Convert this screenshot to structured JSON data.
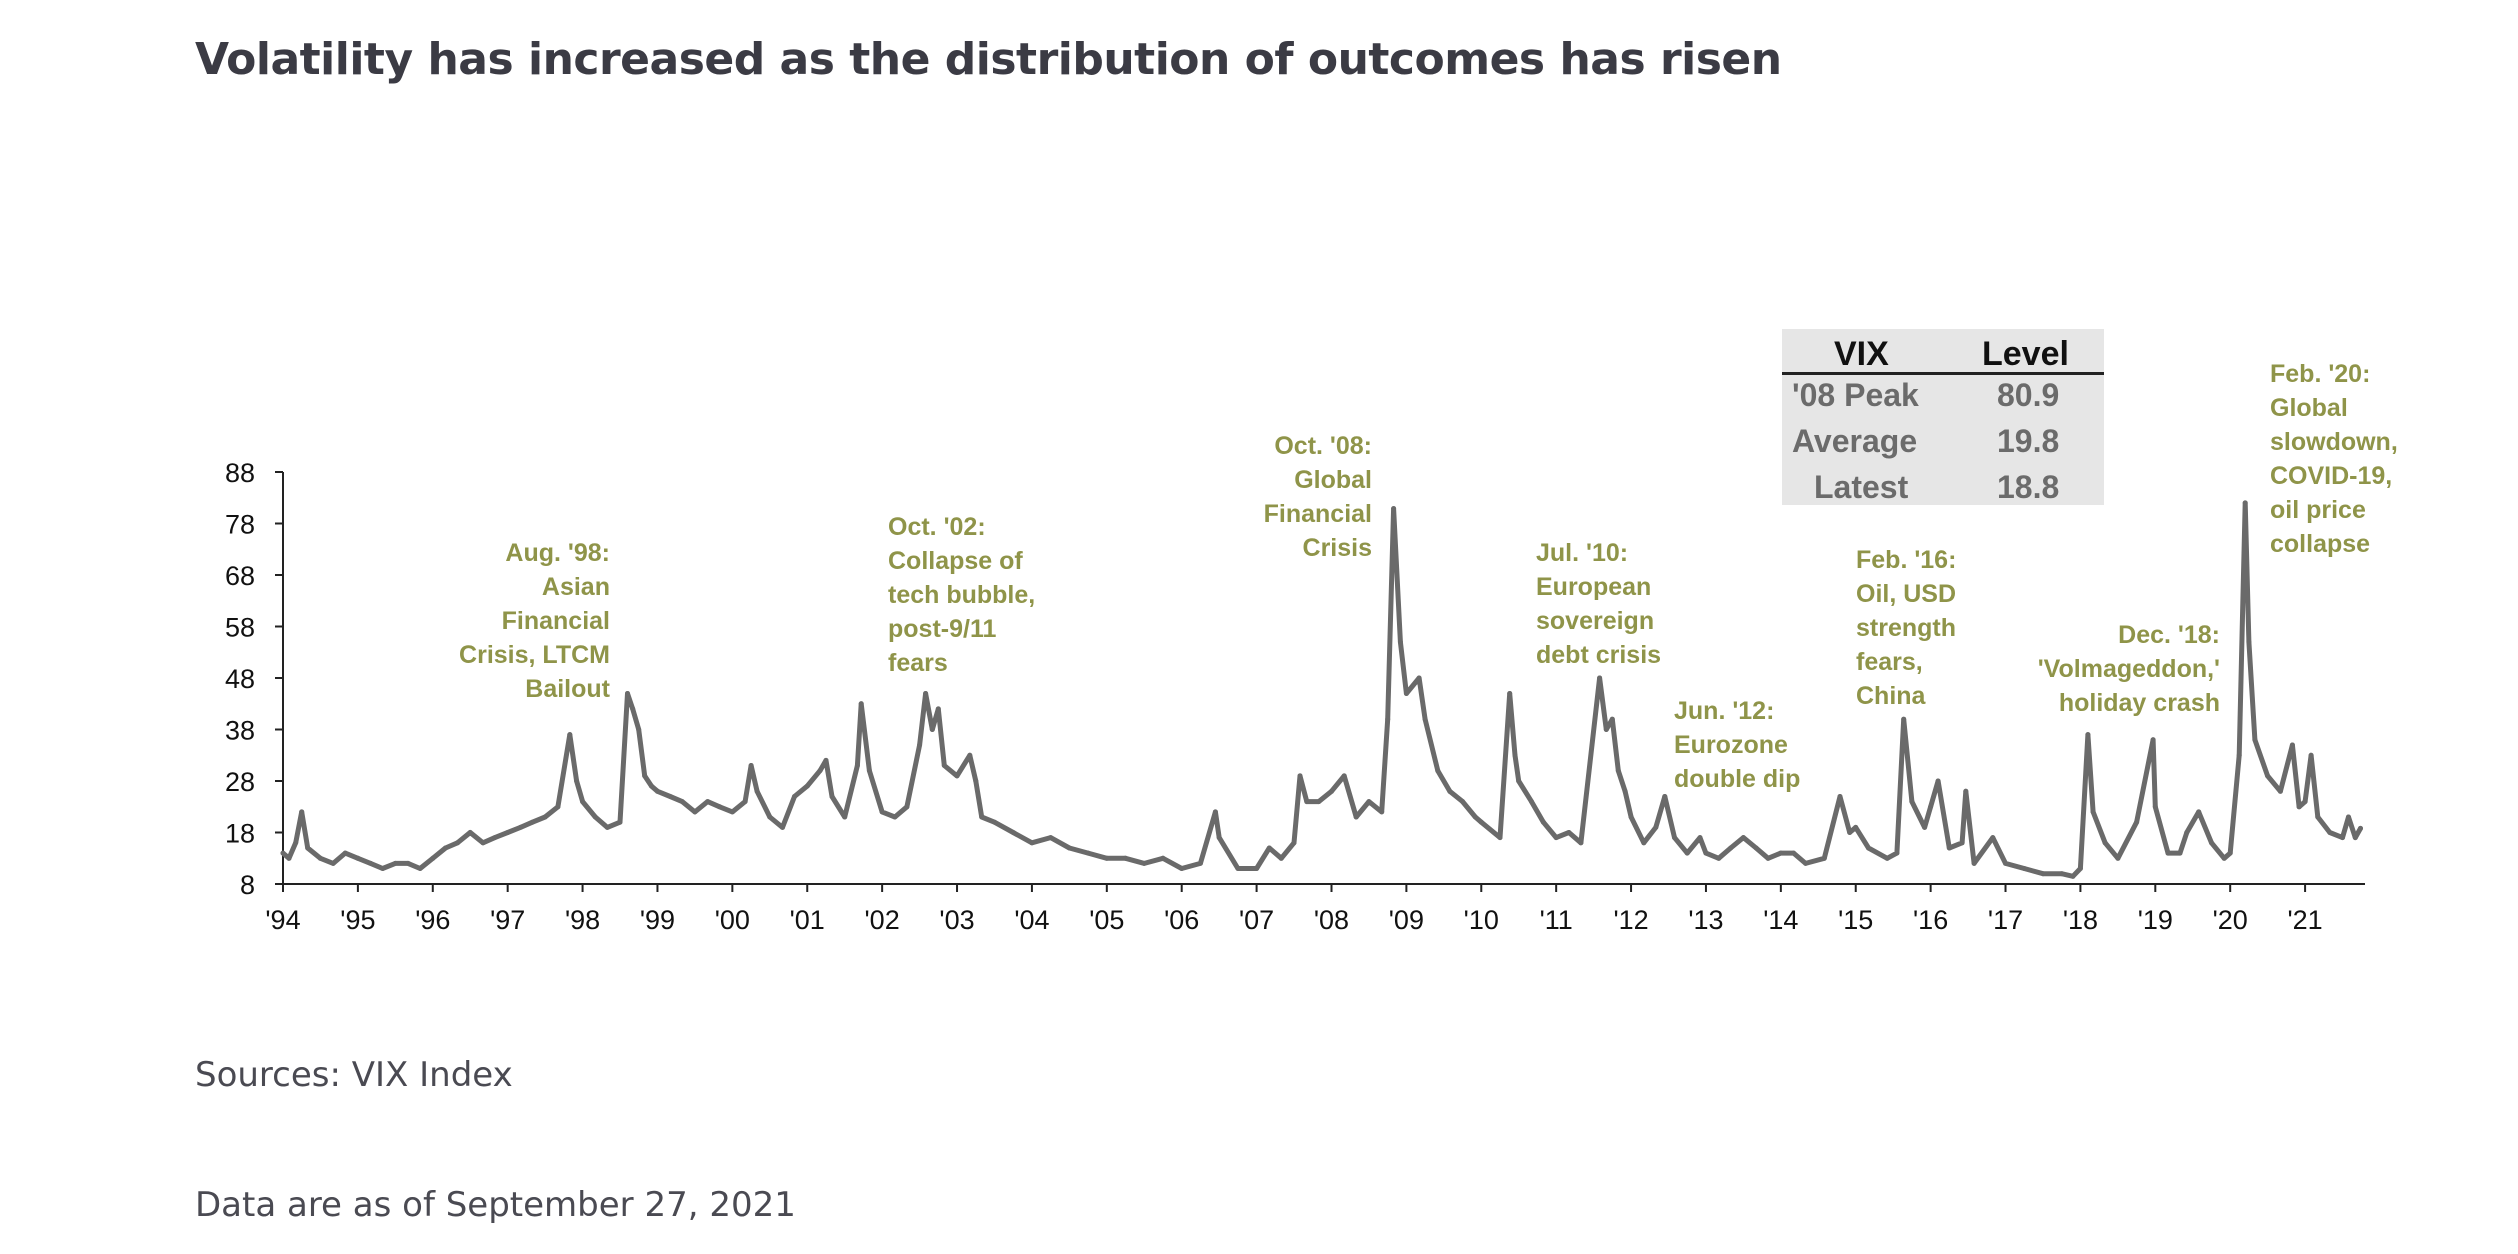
{
  "title": "Volatility has increased as the distribution of outcomes has risen",
  "sources": "Sources: VIX Index",
  "as_of": "Data are as of September 27, 2021",
  "colors": {
    "series": "#6a6a6a",
    "annotation": "#8f9449",
    "title": "#3b3b44",
    "table_bg": "#e6e6e6"
  },
  "vix_table": {
    "headers": [
      "VIX",
      "Level"
    ],
    "rows": [
      {
        "label": "'08 Peak",
        "value": "80.9"
      },
      {
        "label": "Average",
        "value": "19.8"
      },
      {
        "label": "Latest",
        "value": "18.8"
      }
    ]
  },
  "annotations": [
    {
      "text": "Aug. '98:\nAsian\nFinancial\nCrisis, LTCM\nBailout"
    },
    {
      "text": "Oct. '02:\nCollapse of\ntech bubble,\npost-9/11\nfears"
    },
    {
      "text": "Oct. '08:\nGlobal\nFinancial\nCrisis"
    },
    {
      "text": "Jul. '10:\nEuropean\nsovereign\ndebt crisis"
    },
    {
      "text": "Jun. '12:\nEurozone\ndouble dip"
    },
    {
      "text": "Feb. '16:\nOil, USD\nstrength\nfears,\nChina"
    },
    {
      "text": "Dec. '18:\n'Volmageddon,'\nholiday crash"
    },
    {
      "text": "Feb. '20:\nGlobal\nslowdown,\nCOVID-19,\noil price\ncollapse"
    }
  ],
  "chart_data": {
    "type": "line",
    "series": [
      {
        "values": [
          [
            1994.0,
            14
          ],
          [
            1994.08,
            13
          ],
          [
            1994.17,
            16
          ],
          [
            1994.25,
            22
          ],
          [
            1994.33,
            15
          ],
          [
            1994.5,
            13
          ],
          [
            1994.67,
            12
          ],
          [
            1994.83,
            14
          ],
          [
            1995.0,
            13
          ],
          [
            1995.17,
            12
          ],
          [
            1995.33,
            11
          ],
          [
            1995.5,
            12
          ],
          [
            1995.67,
            12
          ],
          [
            1995.83,
            11
          ],
          [
            1996.0,
            13
          ],
          [
            1996.17,
            15
          ],
          [
            1996.33,
            16
          ],
          [
            1996.5,
            18
          ],
          [
            1996.67,
            16
          ],
          [
            1996.83,
            17
          ],
          [
            1997.0,
            18
          ],
          [
            1997.17,
            19
          ],
          [
            1997.33,
            20
          ],
          [
            1997.5,
            21
          ],
          [
            1997.67,
            23
          ],
          [
            1997.83,
            37
          ],
          [
            1997.92,
            28
          ],
          [
            1998.0,
            24
          ],
          [
            1998.17,
            21
          ],
          [
            1998.33,
            19
          ],
          [
            1998.5,
            20
          ],
          [
            1998.6,
            45
          ],
          [
            1998.67,
            42
          ],
          [
            1998.75,
            38
          ],
          [
            1998.83,
            29
          ],
          [
            1998.92,
            27
          ],
          [
            1999.0,
            26
          ],
          [
            1999.17,
            25
          ],
          [
            1999.33,
            24
          ],
          [
            1999.5,
            22
          ],
          [
            1999.67,
            24
          ],
          [
            1999.83,
            23
          ],
          [
            2000.0,
            22
          ],
          [
            2000.17,
            24
          ],
          [
            2000.25,
            31
          ],
          [
            2000.33,
            26
          ],
          [
            2000.5,
            21
          ],
          [
            2000.67,
            19
          ],
          [
            2000.83,
            25
          ],
          [
            2001.0,
            27
          ],
          [
            2001.17,
            30
          ],
          [
            2001.25,
            32
          ],
          [
            2001.33,
            25
          ],
          [
            2001.5,
            21
          ],
          [
            2001.67,
            31
          ],
          [
            2001.72,
            43
          ],
          [
            2001.83,
            30
          ],
          [
            2002.0,
            22
          ],
          [
            2002.17,
            21
          ],
          [
            2002.33,
            23
          ],
          [
            2002.5,
            35
          ],
          [
            2002.58,
            45
          ],
          [
            2002.67,
            38
          ],
          [
            2002.75,
            42
          ],
          [
            2002.83,
            31
          ],
          [
            2003.0,
            29
          ],
          [
            2003.17,
            33
          ],
          [
            2003.25,
            28
          ],
          [
            2003.33,
            21
          ],
          [
            2003.5,
            20
          ],
          [
            2003.75,
            18
          ],
          [
            2004.0,
            16
          ],
          [
            2004.25,
            17
          ],
          [
            2004.5,
            15
          ],
          [
            2004.75,
            14
          ],
          [
            2005.0,
            13
          ],
          [
            2005.25,
            13
          ],
          [
            2005.5,
            12
          ],
          [
            2005.75,
            13
          ],
          [
            2006.0,
            11
          ],
          [
            2006.25,
            12
          ],
          [
            2006.45,
            22
          ],
          [
            2006.5,
            17
          ],
          [
            2006.75,
            11
          ],
          [
            2007.0,
            11
          ],
          [
            2007.17,
            15
          ],
          [
            2007.33,
            13
          ],
          [
            2007.5,
            16
          ],
          [
            2007.58,
            29
          ],
          [
            2007.67,
            24
          ],
          [
            2007.83,
            24
          ],
          [
            2008.0,
            26
          ],
          [
            2008.17,
            29
          ],
          [
            2008.33,
            21
          ],
          [
            2008.5,
            24
          ],
          [
            2008.67,
            22
          ],
          [
            2008.75,
            40
          ],
          [
            2008.83,
            80.9
          ],
          [
            2008.92,
            55
          ],
          [
            2009.0,
            45
          ],
          [
            2009.17,
            48
          ],
          [
            2009.25,
            40
          ],
          [
            2009.42,
            30
          ],
          [
            2009.58,
            26
          ],
          [
            2009.75,
            24
          ],
          [
            2009.92,
            21
          ],
          [
            2010.0,
            20
          ],
          [
            2010.25,
            17
          ],
          [
            2010.38,
            45
          ],
          [
            2010.45,
            33
          ],
          [
            2010.5,
            28
          ],
          [
            2010.67,
            24
          ],
          [
            2010.83,
            20
          ],
          [
            2011.0,
            17
          ],
          [
            2011.17,
            18
          ],
          [
            2011.33,
            16
          ],
          [
            2011.58,
            48
          ],
          [
            2011.67,
            38
          ],
          [
            2011.75,
            40
          ],
          [
            2011.83,
            30
          ],
          [
            2011.92,
            26
          ],
          [
            2012.0,
            21
          ],
          [
            2012.17,
            16
          ],
          [
            2012.33,
            19
          ],
          [
            2012.45,
            25
          ],
          [
            2012.58,
            17
          ],
          [
            2012.75,
            14
          ],
          [
            2012.92,
            17
          ],
          [
            2013.0,
            14
          ],
          [
            2013.17,
            13
          ],
          [
            2013.33,
            15
          ],
          [
            2013.5,
            17
          ],
          [
            2013.67,
            15
          ],
          [
            2013.83,
            13
          ],
          [
            2014.0,
            14
          ],
          [
            2014.17,
            14
          ],
          [
            2014.33,
            12
          ],
          [
            2014.58,
            13
          ],
          [
            2014.79,
            25
          ],
          [
            2014.92,
            18
          ],
          [
            2015.0,
            19
          ],
          [
            2015.17,
            15
          ],
          [
            2015.42,
            13
          ],
          [
            2015.55,
            14
          ],
          [
            2015.64,
            40
          ],
          [
            2015.75,
            24
          ],
          [
            2015.92,
            19
          ],
          [
            2016.0,
            23
          ],
          [
            2016.1,
            28
          ],
          [
            2016.25,
            15
          ],
          [
            2016.42,
            16
          ],
          [
            2016.47,
            26
          ],
          [
            2016.58,
            12
          ],
          [
            2016.83,
            17
          ],
          [
            2017.0,
            12
          ],
          [
            2017.25,
            11
          ],
          [
            2017.5,
            10
          ],
          [
            2017.75,
            10
          ],
          [
            2017.9,
            9.5
          ],
          [
            2018.0,
            11
          ],
          [
            2018.1,
            37
          ],
          [
            2018.17,
            22
          ],
          [
            2018.33,
            16
          ],
          [
            2018.5,
            13
          ],
          [
            2018.75,
            20
          ],
          [
            2018.97,
            36
          ],
          [
            2019.0,
            23
          ],
          [
            2019.17,
            14
          ],
          [
            2019.33,
            14
          ],
          [
            2019.42,
            18
          ],
          [
            2019.58,
            22
          ],
          [
            2019.75,
            16
          ],
          [
            2019.92,
            13
          ],
          [
            2020.0,
            14
          ],
          [
            2020.12,
            33
          ],
          [
            2020.2,
            82
          ],
          [
            2020.25,
            55
          ],
          [
            2020.33,
            36
          ],
          [
            2020.5,
            29
          ],
          [
            2020.67,
            26
          ],
          [
            2020.83,
            35
          ],
          [
            2020.92,
            23
          ],
          [
            2021.0,
            24
          ],
          [
            2021.08,
            33
          ],
          [
            2021.17,
            21
          ],
          [
            2021.33,
            18
          ],
          [
            2021.5,
            17
          ],
          [
            2021.58,
            21
          ],
          [
            2021.67,
            17
          ],
          [
            2021.74,
            18.8
          ]
        ]
      }
    ],
    "x_tick_labels": [
      "'94",
      "'95",
      "'96",
      "'97",
      "'98",
      "'99",
      "'00",
      "'01",
      "'02",
      "'03",
      "'04",
      "'05",
      "'06",
      "'07",
      "'08",
      "'09",
      "'10",
      "'11",
      "'12",
      "'13",
      "'14",
      "'15",
      "'16",
      "'17",
      "'18",
      "'19",
      "'20",
      "'21"
    ],
    "y_ticks": [
      8,
      18,
      28,
      38,
      48,
      58,
      68,
      78,
      88
    ],
    "xlim": [
      1994,
      2021.8
    ],
    "ylim": [
      8,
      88
    ],
    "title": "Volatility has increased as the distribution of outcomes has risen",
    "xlabel": "",
    "ylabel": "",
    "grid": false,
    "legend": "none"
  }
}
